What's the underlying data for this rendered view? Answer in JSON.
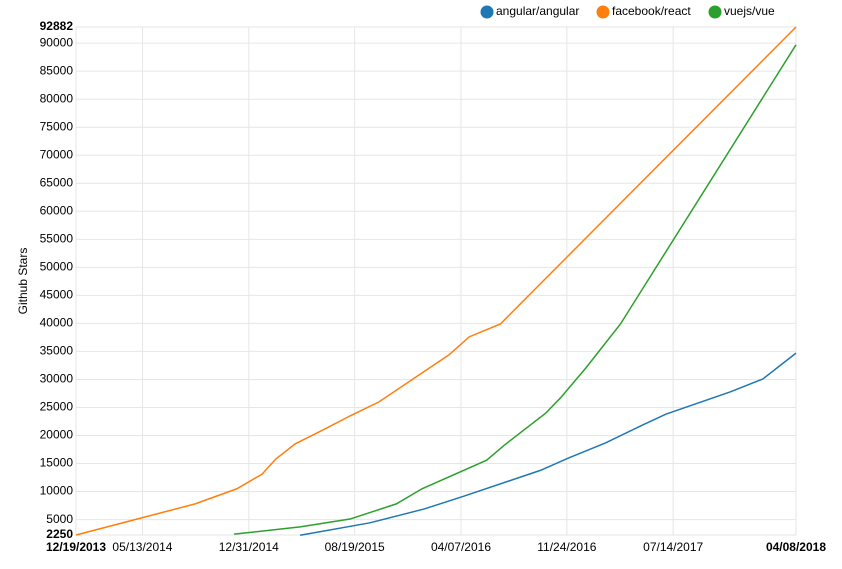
{
  "chart_data": {
    "type": "line",
    "y_label": "Github Stars",
    "xlim": [
      "12/19/2013",
      "04/08/2018"
    ],
    "xticks": [
      "12/19/2013",
      "05/13/2014",
      "12/31/2014",
      "08/19/2015",
      "04/07/2016",
      "11/24/2016",
      "07/14/2017",
      "04/08/2018"
    ],
    "ylim": [
      2250,
      92882
    ],
    "yticks": [
      2250,
      5000,
      10000,
      15000,
      20000,
      25000,
      30000,
      35000,
      40000,
      45000,
      50000,
      55000,
      60000,
      65000,
      70000,
      75000,
      80000,
      85000,
      90000,
      92882
    ],
    "grid": true,
    "legend": "top-right",
    "series": [
      {
        "name": "angular/angular",
        "color": "#1f77b4",
        "x": [
          "04/22/2015",
          "09/20/2015",
          "01/18/2016",
          "04/14/2016",
          "09/28/2016",
          "11/28/2016",
          "02/17/2017",
          "05/04/2017",
          "06/28/2017",
          "11/16/2017",
          "01/26/2018",
          "04/08/2018"
        ],
        "values": [
          2200,
          4400,
          6900,
          9200,
          13800,
          16000,
          18700,
          21700,
          23800,
          27800,
          30100,
          34700
        ]
      },
      {
        "name": "facebook/react",
        "color": "#ff7f0e",
        "x": [
          "12/19/2013",
          "09/05/2014",
          "12/05/2014",
          "01/29/2015",
          "02/28/2015",
          "04/11/2015",
          "06/11/2015",
          "08/09/2015",
          "10/11/2015",
          "03/12/2016",
          "04/25/2016",
          "07/02/2016",
          "04/08/2018"
        ],
        "values": [
          2250,
          7800,
          10500,
          13100,
          15800,
          18500,
          21000,
          23500,
          26000,
          34400,
          37600,
          39900,
          92882
        ]
      },
      {
        "name": "vuejs/vue",
        "color": "#2ca02c",
        "x": [
          "11/29/2014",
          "04/22/2015",
          "08/09/2015",
          "11/18/2015",
          "01/13/2016",
          "06/02/2016",
          "07/11/2016",
          "10/09/2016",
          "11/10/2016",
          "01/04/2017",
          "03/21/2017",
          "04/08/2018"
        ],
        "values": [
          2400,
          3700,
          5100,
          7800,
          10500,
          15600,
          18300,
          24000,
          26700,
          32000,
          39900,
          89700
        ]
      }
    ]
  }
}
